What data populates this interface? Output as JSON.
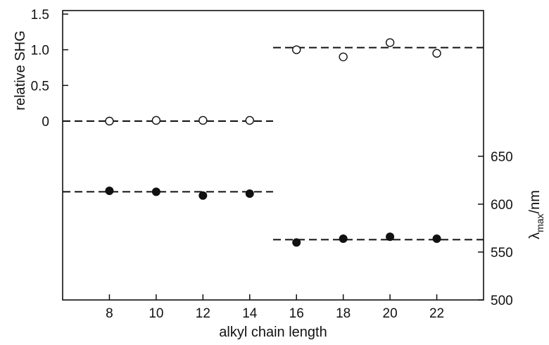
{
  "chart_data": {
    "type": "scatter",
    "xlabel": "alkyl chain length",
    "x_ticks": [
      8,
      10,
      12,
      14,
      16,
      18,
      20,
      22
    ],
    "xlim": [
      6,
      24
    ],
    "y_left": {
      "label": "relative SHG",
      "ylim": [
        -0.05,
        1.5
      ],
      "ticks": [
        0,
        0.5,
        1.0,
        1.5
      ],
      "tick_labels": [
        "0",
        "0.5",
        "1.0",
        "1.5"
      ]
    },
    "y_right": {
      "label_main": "λ",
      "label_sub": "max",
      "label_tail": "/nm",
      "ylim": [
        500,
        680
      ],
      "ticks": [
        500,
        550,
        600,
        650
      ],
      "tick_labels": [
        "500",
        "550",
        "600",
        "650"
      ]
    },
    "series": [
      {
        "axis": "left",
        "marker": "open-circle",
        "x": [
          8,
          10,
          12,
          14,
          16,
          18,
          20,
          22
        ],
        "y": [
          0.0,
          0.01,
          0.01,
          0.01,
          1.0,
          0.9,
          1.1,
          0.95
        ]
      },
      {
        "axis": "right",
        "marker": "filled-circle",
        "x": [
          8,
          10,
          12,
          14,
          16,
          18,
          20,
          22
        ],
        "y": [
          614,
          613,
          609,
          611,
          560,
          564,
          566,
          564
        ]
      }
    ],
    "reference_lines": [
      {
        "axis": "left",
        "x_range": [
          6,
          15
        ],
        "y": 0.0
      },
      {
        "axis": "left",
        "x_range": [
          15,
          24
        ],
        "y": 1.03
      },
      {
        "axis": "right",
        "x_range": [
          6,
          15
        ],
        "y": 613
      },
      {
        "axis": "right",
        "x_range": [
          15,
          24
        ],
        "y": 563
      }
    ],
    "grid": false,
    "legend": "none",
    "colors": {
      "marks": "#111111",
      "background": "#ffffff"
    }
  }
}
